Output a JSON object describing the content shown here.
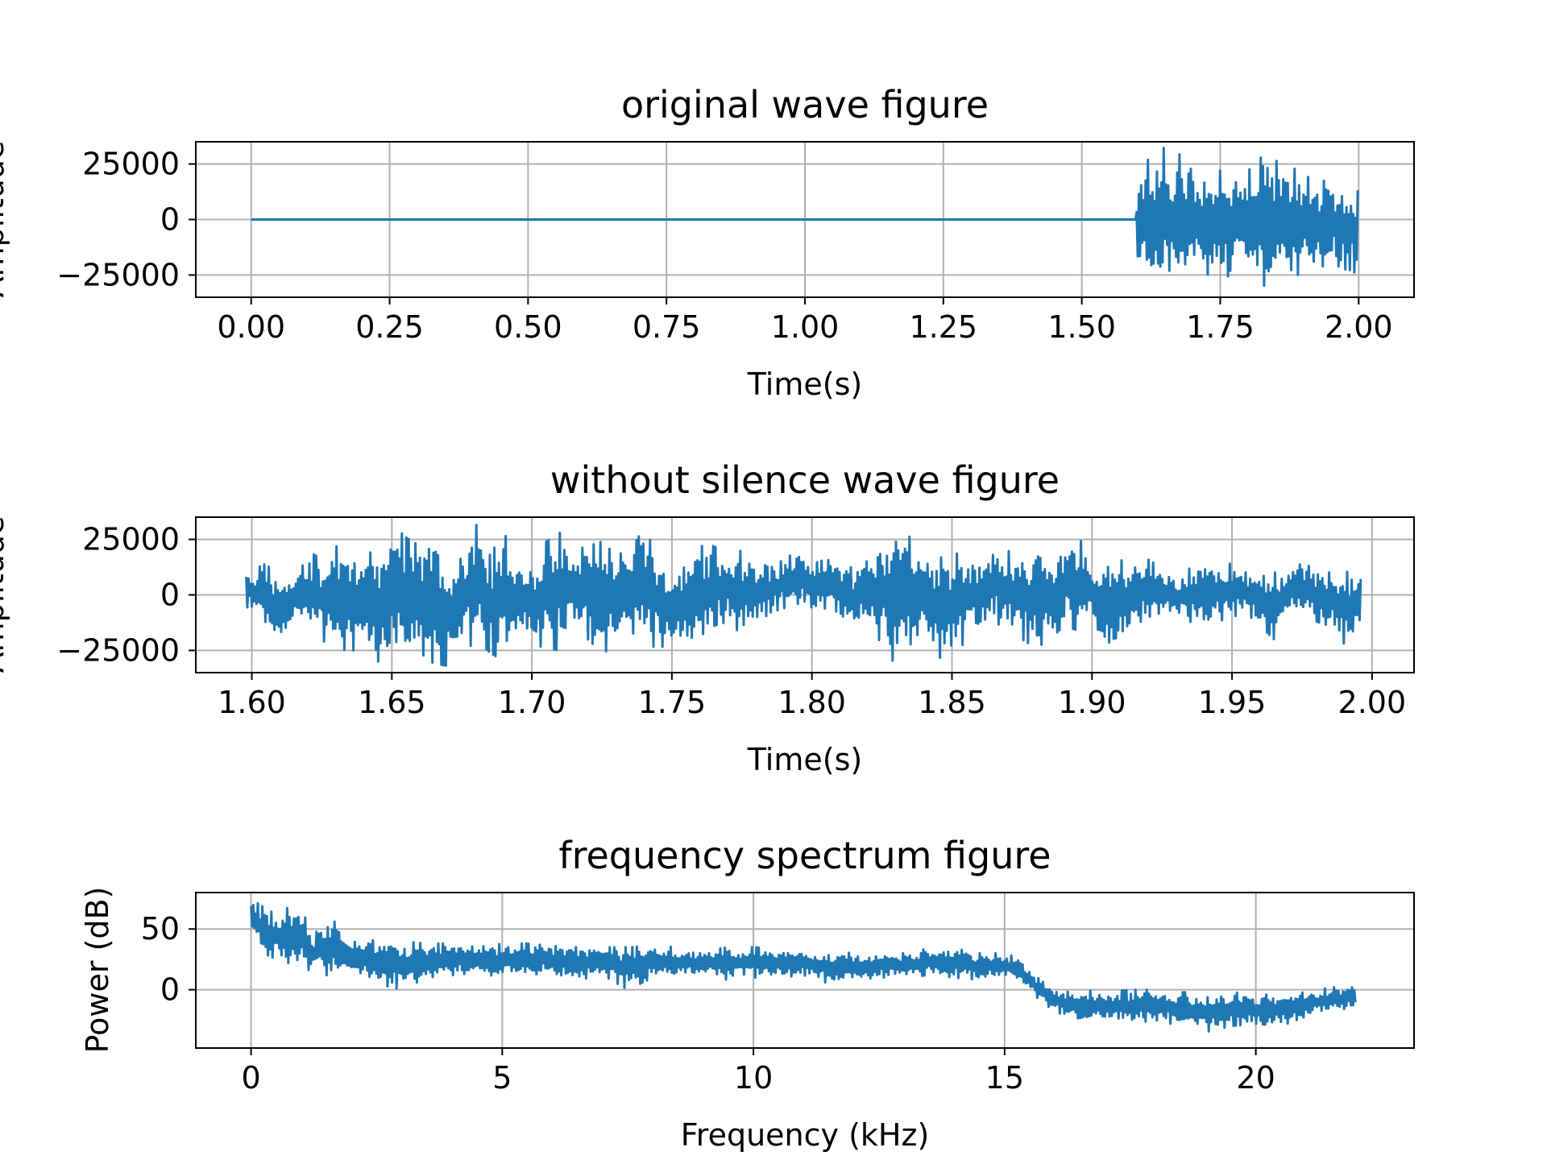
{
  "chart_data": [
    {
      "type": "line",
      "title": "original wave figure",
      "xlabel": "Time(s)",
      "ylabel": "Amplitude",
      "xlim": [
        -0.1,
        2.1
      ],
      "ylim": [
        -35000,
        35000
      ],
      "xticks": [
        0.0,
        0.25,
        0.5,
        0.75,
        1.0,
        1.25,
        1.5,
        1.75,
        2.0
      ],
      "xtick_labels": [
        "0.00",
        "0.25",
        "0.50",
        "0.75",
        "1.00",
        "1.25",
        "1.50",
        "1.75",
        "2.00"
      ],
      "yticks": [
        -25000,
        0,
        25000
      ],
      "ytick_labels": [
        "−25000",
        "0",
        "25000"
      ],
      "grid": true,
      "color": "#1f77b4",
      "series": [
        {
          "x": [
            0.0,
            1.598,
            1.6,
            1.61,
            1.62,
            1.63,
            1.64,
            1.65,
            1.66,
            1.67,
            1.68,
            1.69,
            1.7,
            1.71,
            1.72,
            1.73,
            1.74,
            1.75,
            1.76,
            1.77,
            1.78,
            1.79,
            1.8,
            1.81,
            1.82,
            1.83,
            1.84,
            1.85,
            1.86,
            1.87,
            1.88,
            1.89,
            1.9,
            1.91,
            1.92,
            1.93,
            1.94,
            1.95,
            1.96,
            1.97,
            1.98,
            1.99,
            2.0
          ],
          "y_min": [
            0,
            0,
            -20000,
            -24000,
            -26000,
            -28000,
            -30000,
            -31000,
            -30000,
            -32000,
            -28000,
            -27000,
            -29000,
            -25000,
            -27000,
            -24000,
            -26000,
            -24000,
            -28000,
            -22000,
            -25000,
            -22000,
            -24000,
            -26000,
            -27000,
            -30000,
            -29000,
            -26000,
            -28000,
            -26000,
            -22000,
            -25000,
            -23000,
            -22000,
            -24000,
            -20000,
            -22000,
            -21000,
            -20000,
            -23000,
            -22000,
            -24000,
            -23000
          ],
          "y_max": [
            0,
            0,
            17000,
            24000,
            27000,
            26000,
            29000,
            33000,
            31000,
            30000,
            29000,
            30000,
            28000,
            24000,
            25000,
            22000,
            23000,
            22000,
            24000,
            20000,
            23000,
            21000,
            22000,
            24000,
            26000,
            32000,
            28000,
            26000,
            28000,
            24000,
            22000,
            24000,
            20000,
            19000,
            21000,
            16000,
            18000,
            16000,
            15000,
            17000,
            15000,
            14000,
            13000
          ]
        }
      ]
    },
    {
      "type": "line",
      "title": "without silence wave figure",
      "xlabel": "Time(s)",
      "ylabel": "Amplitude",
      "xlim": [
        1.58,
        2.015
      ],
      "ylim": [
        -35000,
        35000
      ],
      "xticks": [
        1.6,
        1.65,
        1.7,
        1.75,
        1.8,
        1.85,
        1.9,
        1.95,
        2.0
      ],
      "xtick_labels": [
        "1.60",
        "1.65",
        "1.70",
        "1.75",
        "1.80",
        "1.85",
        "1.90",
        "1.95",
        "2.00"
      ],
      "yticks": [
        -25000,
        0,
        25000
      ],
      "ytick_labels": [
        "−25000",
        "0",
        "25000"
      ],
      "grid": true,
      "color": "#1f77b4",
      "series": [
        {
          "x": [
            1.598,
            1.605,
            1.61,
            1.615,
            1.62,
            1.625,
            1.63,
            1.635,
            1.64,
            1.645,
            1.65,
            1.655,
            1.66,
            1.665,
            1.67,
            1.675,
            1.68,
            1.685,
            1.69,
            1.695,
            1.7,
            1.705,
            1.71,
            1.715,
            1.72,
            1.725,
            1.73,
            1.735,
            1.74,
            1.745,
            1.75,
            1.755,
            1.76,
            1.765,
            1.77,
            1.775,
            1.78,
            1.785,
            1.79,
            1.795,
            1.8,
            1.805,
            1.81,
            1.815,
            1.82,
            1.825,
            1.83,
            1.835,
            1.84,
            1.845,
            1.85,
            1.855,
            1.86,
            1.865,
            1.87,
            1.875,
            1.88,
            1.885,
            1.89,
            1.895,
            1.9,
            1.905,
            1.91,
            1.915,
            1.92,
            1.925,
            1.93,
            1.935,
            1.94,
            1.945,
            1.95,
            1.955,
            1.96,
            1.965,
            1.97,
            1.975,
            1.98,
            1.985,
            1.99,
            1.996
          ],
          "y_min": [
            -5000,
            -16000,
            -22000,
            -12000,
            -16000,
            -20000,
            -26000,
            -24000,
            -28000,
            -30000,
            -29000,
            -27000,
            -26000,
            -31000,
            -32000,
            -28000,
            -20000,
            -26000,
            -30000,
            -18000,
            -22000,
            -24000,
            -25000,
            -14000,
            -20000,
            -26000,
            -24000,
            -16000,
            -22000,
            -24000,
            -22000,
            -28000,
            -25000,
            -14000,
            -12000,
            -18000,
            -14000,
            -8000,
            -6000,
            -4000,
            -8000,
            -6000,
            -8000,
            -16000,
            -14000,
            -22000,
            -32000,
            -22000,
            -26000,
            -28000,
            -30000,
            -20000,
            -16000,
            -12000,
            -16000,
            -20000,
            -24000,
            -20000,
            -14000,
            -16000,
            -14000,
            -28000,
            -24000,
            -14000,
            -10000,
            -8000,
            -10000,
            -12000,
            -18000,
            -12000,
            -10000,
            -8000,
            -14000,
            -20000,
            -8000,
            -10000,
            -12000,
            -14000,
            -22000,
            -18000
          ],
          "y_max": [
            10000,
            14000,
            8000,
            12000,
            20000,
            16000,
            22000,
            18000,
            20000,
            18000,
            32000,
            26000,
            22000,
            30000,
            14000,
            24000,
            32000,
            18000,
            28000,
            16000,
            14000,
            24000,
            28000,
            20000,
            22000,
            24000,
            18000,
            20000,
            30000,
            18000,
            10000,
            20000,
            22000,
            22000,
            18000,
            20000,
            16000,
            12000,
            16000,
            20000,
            14000,
            16000,
            14000,
            12000,
            20000,
            24000,
            32000,
            26000,
            24000,
            16000,
            20000,
            16000,
            18000,
            22000,
            20000,
            14000,
            24000,
            16000,
            24000,
            26000,
            18000,
            12000,
            16000,
            12000,
            16000,
            12000,
            8000,
            12000,
            16000,
            14000,
            14000,
            10000,
            8000,
            10000,
            12000,
            14000,
            12000,
            10000,
            10000,
            12000
          ]
        }
      ]
    },
    {
      "type": "line",
      "title": "frequency spectrum figure",
      "xlabel": "Frequency (kHz)",
      "ylabel": "Power (dB)",
      "xlim": [
        -1.1,
        23.15
      ],
      "ylim": [
        -48,
        80
      ],
      "xticks": [
        0,
        5,
        10,
        15,
        20
      ],
      "xtick_labels": [
        "0",
        "5",
        "10",
        "15",
        "20"
      ],
      "yticks": [
        0,
        50
      ],
      "ytick_labels": [
        "0",
        "50"
      ],
      "grid": true,
      "color": "#1f77b4",
      "series": [
        {
          "x": [
            0.0,
            0.25,
            0.5,
            0.75,
            1.0,
            1.25,
            1.5,
            1.75,
            2.0,
            2.5,
            3.0,
            3.5,
            4.0,
            4.5,
            5.0,
            5.5,
            6.0,
            6.5,
            7.0,
            7.5,
            8.0,
            8.5,
            9.0,
            9.5,
            10.0,
            10.5,
            11.0,
            11.5,
            12.0,
            12.5,
            13.0,
            13.5,
            14.0,
            14.5,
            15.0,
            15.3,
            15.6,
            15.9,
            16.2,
            16.5,
            17.0,
            17.5,
            18.0,
            18.5,
            19.0,
            19.5,
            20.0,
            20.5,
            21.0,
            21.5,
            22.0
          ],
          "y_min": [
            45,
            30,
            25,
            22,
            18,
            15,
            12,
            10,
            12,
            5,
            0,
            10,
            12,
            14,
            10,
            12,
            14,
            8,
            12,
            0,
            10,
            10,
            12,
            8,
            10,
            10,
            12,
            5,
            8,
            10,
            10,
            12,
            10,
            8,
            10,
            5,
            -5,
            -15,
            -22,
            -28,
            -25,
            -28,
            -25,
            -30,
            -35,
            -30,
            -28,
            -30,
            -22,
            -18,
            -14
          ],
          "y_max": [
            75,
            68,
            62,
            68,
            66,
            45,
            58,
            55,
            45,
            40,
            40,
            38,
            38,
            35,
            38,
            38,
            36,
            35,
            35,
            35,
            36,
            35,
            32,
            35,
            35,
            34,
            32,
            32,
            30,
            30,
            30,
            34,
            34,
            30,
            30,
            26,
            12,
            2,
            -2,
            0,
            -2,
            0,
            0,
            -2,
            -2,
            -2,
            -4,
            -4,
            -2,
            2,
            2
          ]
        }
      ]
    }
  ]
}
